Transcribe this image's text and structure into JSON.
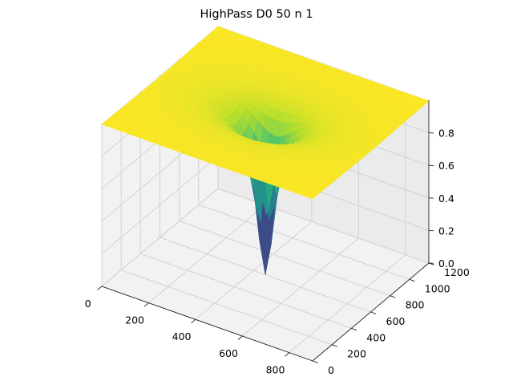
{
  "chart_data": {
    "type": "surface3d",
    "title": "HighPass D0 50 n 1",
    "xlabel": "",
    "ylabel": "",
    "zlabel": "",
    "filter": {
      "kind": "butterworth-highpass",
      "D0": 50,
      "n": 1,
      "center": [
        450,
        600
      ]
    },
    "x_range": [
      0,
      900
    ],
    "y_range": [
      0,
      1200
    ],
    "z_range": [
      0,
      1
    ],
    "x_ticks": [
      0,
      200,
      400,
      600,
      800
    ],
    "y_ticks": [
      0,
      200,
      400,
      600,
      800,
      1000,
      1200
    ],
    "z_ticks": [
      0.0,
      0.2,
      0.4,
      0.6,
      0.8
    ],
    "x_tick_labels": [
      "0",
      "200",
      "400",
      "600",
      "800"
    ],
    "y_tick_labels": [
      "0",
      "200",
      "400",
      "600",
      "800",
      "1000",
      "1200"
    ],
    "z_tick_labels": [
      "0.0",
      "0.2",
      "0.4",
      "0.6",
      "0.8"
    ],
    "colormap": "viridis",
    "colors": {
      "low": "#440154",
      "mid": "#21918c",
      "high": "#fde725"
    },
    "grid": true
  }
}
